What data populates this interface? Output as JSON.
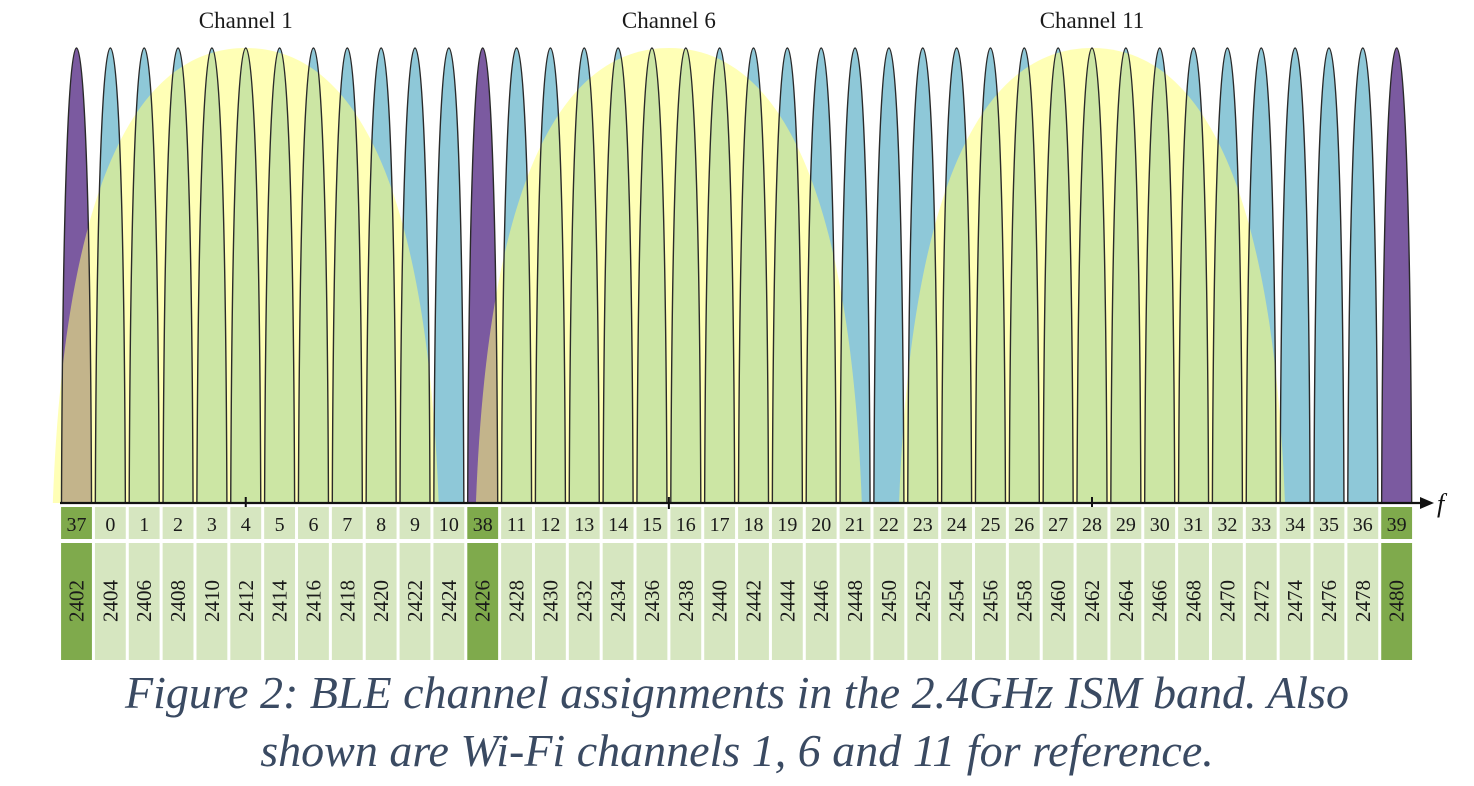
{
  "wifi": {
    "channels": [
      {
        "label": "Channel 1",
        "center_mhz": 2412
      },
      {
        "label": "Channel 6",
        "center_mhz": 2437
      },
      {
        "label": "Channel 11",
        "center_mhz": 2462
      }
    ]
  },
  "ble": {
    "advertising_channels": [
      37,
      38,
      39
    ],
    "channels": [
      {
        "index": 37,
        "freq_mhz": 2402
      },
      {
        "index": 0,
        "freq_mhz": 2404
      },
      {
        "index": 1,
        "freq_mhz": 2406
      },
      {
        "index": 2,
        "freq_mhz": 2408
      },
      {
        "index": 3,
        "freq_mhz": 2410
      },
      {
        "index": 4,
        "freq_mhz": 2412
      },
      {
        "index": 5,
        "freq_mhz": 2414
      },
      {
        "index": 6,
        "freq_mhz": 2416
      },
      {
        "index": 7,
        "freq_mhz": 2418
      },
      {
        "index": 8,
        "freq_mhz": 2420
      },
      {
        "index": 9,
        "freq_mhz": 2422
      },
      {
        "index": 10,
        "freq_mhz": 2424
      },
      {
        "index": 38,
        "freq_mhz": 2426
      },
      {
        "index": 11,
        "freq_mhz": 2428
      },
      {
        "index": 12,
        "freq_mhz": 2430
      },
      {
        "index": 13,
        "freq_mhz": 2432
      },
      {
        "index": 14,
        "freq_mhz": 2434
      },
      {
        "index": 15,
        "freq_mhz": 2436
      },
      {
        "index": 16,
        "freq_mhz": 2438
      },
      {
        "index": 17,
        "freq_mhz": 2440
      },
      {
        "index": 18,
        "freq_mhz": 2442
      },
      {
        "index": 19,
        "freq_mhz": 2444
      },
      {
        "index": 20,
        "freq_mhz": 2446
      },
      {
        "index": 21,
        "freq_mhz": 2448
      },
      {
        "index": 22,
        "freq_mhz": 2450
      },
      {
        "index": 23,
        "freq_mhz": 2452
      },
      {
        "index": 24,
        "freq_mhz": 2454
      },
      {
        "index": 25,
        "freq_mhz": 2456
      },
      {
        "index": 26,
        "freq_mhz": 2458
      },
      {
        "index": 27,
        "freq_mhz": 2460
      },
      {
        "index": 28,
        "freq_mhz": 2462
      },
      {
        "index": 29,
        "freq_mhz": 2464
      },
      {
        "index": 30,
        "freq_mhz": 2466
      },
      {
        "index": 31,
        "freq_mhz": 2468
      },
      {
        "index": 32,
        "freq_mhz": 2470
      },
      {
        "index": 33,
        "freq_mhz": 2472
      },
      {
        "index": 34,
        "freq_mhz": 2474
      },
      {
        "index": 35,
        "freq_mhz": 2476
      },
      {
        "index": 36,
        "freq_mhz": 2478
      },
      {
        "index": 39,
        "freq_mhz": 2480
      }
    ]
  },
  "axis": {
    "label": "f"
  },
  "caption": {
    "line1": "Figure 2: BLE channel assignments in the 2.4GHz ISM band. Also",
    "line2": "shown are Wi-Fi channels 1, 6 and 11 for reference."
  },
  "colors": {
    "data_channel": "#8ec8d8",
    "advertising_channel": "#7b5aa0",
    "wifi_overlay": "#ffff7a",
    "label_cell_data": "#d6e6c0",
    "label_cell_adv": "#7faa4c",
    "background": "#ffffff",
    "caption_text": "#3a4a62"
  }
}
